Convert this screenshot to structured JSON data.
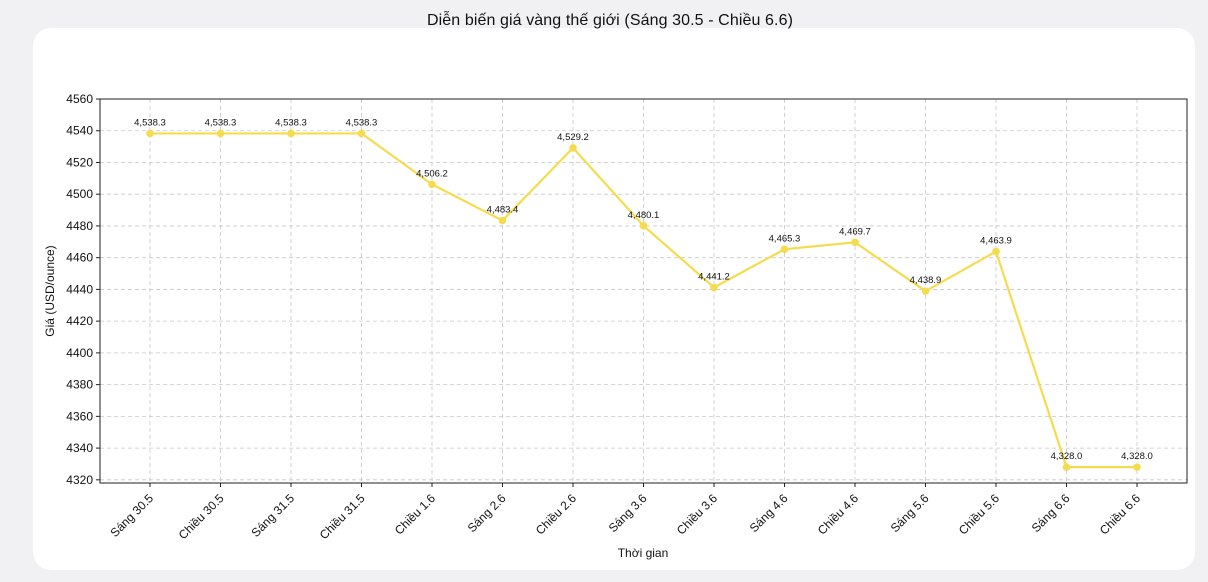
{
  "chart_data": {
    "type": "line",
    "title": "Diễn biến giá vàng thế giới (Sáng 30.5 - Chiều 6.6)",
    "xlabel": "Thời gian",
    "ylabel": "Giá (USD/ounce)",
    "categories": [
      "Sáng 30.5",
      "Chiều 30.5",
      "Sáng 31.5",
      "Chiều 31.5",
      "Chiều 1.6",
      "Sáng 2.6",
      "Chiều 2.6",
      "Sáng 3.6",
      "Chiều 3.6",
      "Sáng 4.6",
      "Chiều 4.6",
      "Sáng 5.6",
      "Chiều 5.6",
      "Sáng 6.6",
      "Chiều 6.6"
    ],
    "values": [
      4538.3,
      4538.3,
      4538.3,
      4538.3,
      4506.2,
      4483.4,
      4529.2,
      4480.1,
      4441.2,
      4465.3,
      4469.7,
      4438.9,
      4463.9,
      4328.0,
      4328.0
    ],
    "data_labels": [
      "4,538.3",
      "4,538.3",
      "4,538.3",
      "4,538.3",
      "4,506.2",
      "4,483.4",
      "4,529.2",
      "4,480.1",
      "4,441.2",
      "4,465.3",
      "4,469.7",
      "4,438.9",
      "4,463.9",
      "4,328.0",
      "4,328.0"
    ],
    "y_ticks": [
      4320,
      4340,
      4360,
      4380,
      4400,
      4420,
      4440,
      4460,
      4480,
      4500,
      4520,
      4540,
      4560
    ],
    "ylim": [
      4318,
      4560
    ],
    "grid": true,
    "line_color": "#f5dc4f",
    "marker_color": "#f5dc4f"
  }
}
